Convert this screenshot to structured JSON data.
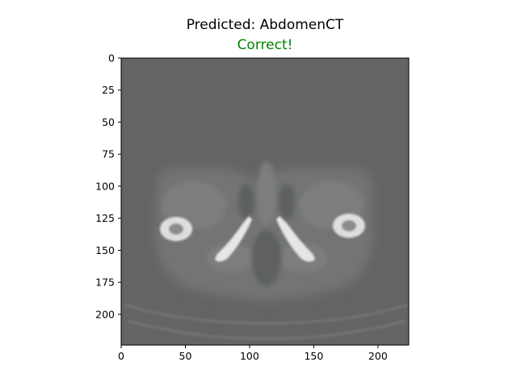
{
  "figure": {
    "title": "Predicted: AbdomenCT",
    "subtitle": "Correct!",
    "subtitle_color": "#008000"
  },
  "image": {
    "content": "abdomen-ct-pelvis-slice",
    "background_color": "#636563",
    "x_range": [
      0,
      224
    ],
    "y_range": [
      0,
      224
    ],
    "x_ticks": [
      0,
      50,
      100,
      150,
      200
    ],
    "y_ticks": [
      0,
      25,
      50,
      75,
      100,
      125,
      150,
      175,
      200
    ]
  }
}
